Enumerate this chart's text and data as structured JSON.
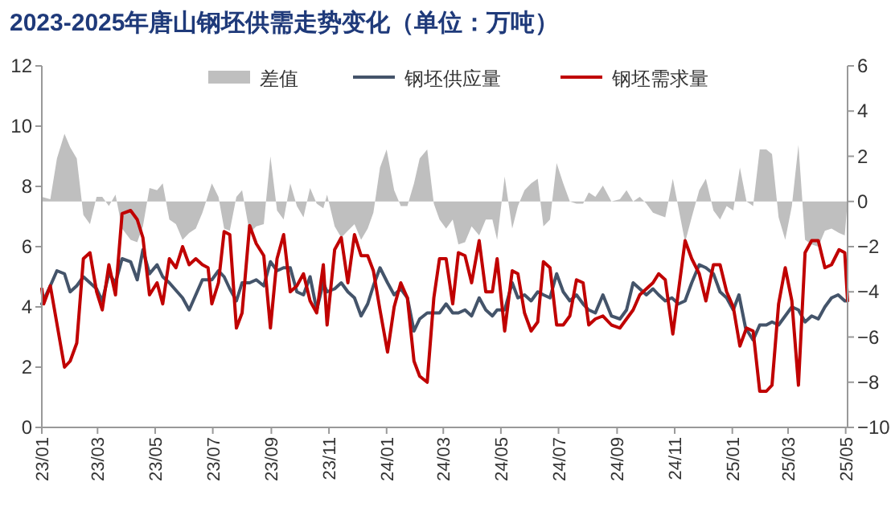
{
  "chart_data": {
    "type": "line",
    "title": "2023-2025年唐山钢坯供需走势变化（单位：万吨）",
    "legend": "top",
    "xlim": [
      "2023-01-01",
      "2025-05-03"
    ],
    "xticks": [
      {
        "value": "2023-01-01",
        "label": "23/01"
      },
      {
        "value": "2023-03-01",
        "label": "23/03"
      },
      {
        "value": "2023-05-01",
        "label": "23/05"
      },
      {
        "value": "2023-07-01",
        "label": "23/07"
      },
      {
        "value": "2023-09-01",
        "label": "23/09"
      },
      {
        "value": "2023-11-01",
        "label": "23/11"
      },
      {
        "value": "2024-01-01",
        "label": "24/01"
      },
      {
        "value": "2024-03-01",
        "label": "24/03"
      },
      {
        "value": "2024-05-01",
        "label": "24/05"
      },
      {
        "value": "2024-07-01",
        "label": "24/07"
      },
      {
        "value": "2024-09-01",
        "label": "24/09"
      },
      {
        "value": "2024-11-01",
        "label": "24/11"
      },
      {
        "value": "2025-01-01",
        "label": "25/01"
      },
      {
        "value": "2025-03-01",
        "label": "25/03"
      },
      {
        "value": "2025-05-01",
        "label": "25/05"
      }
    ],
    "ylim": [
      0,
      12
    ],
    "yticks": [
      0,
      2,
      4,
      6,
      8,
      10,
      12
    ],
    "y2lim": [
      -10,
      6
    ],
    "y2ticks": [
      -10,
      -8,
      -6,
      -4,
      -2,
      0,
      2,
      4,
      6
    ],
    "series": [
      {
        "name": "差值",
        "type": "area",
        "axis": "y2",
        "color": "#bfbfbf",
        "x": [
          "2023-01-01",
          "2023-01-10",
          "2023-01-17",
          "2023-01-25",
          "2023-01-31",
          "2023-02-07",
          "2023-02-14",
          "2023-02-21",
          "2023-02-28",
          "2023-03-06",
          "2023-03-13",
          "2023-03-20",
          "2023-03-27",
          "2023-04-05",
          "2023-04-12",
          "2023-04-18",
          "2023-04-25",
          "2023-05-03",
          "2023-05-09",
          "2023-05-16",
          "2023-05-23",
          "2023-05-30",
          "2023-06-06",
          "2023-06-13",
          "2023-06-20",
          "2023-06-30",
          "2023-07-07",
          "2023-07-13",
          "2023-07-19",
          "2023-07-26",
          "2023-08-01",
          "2023-08-09",
          "2023-08-16",
          "2023-08-24",
          "2023-08-31",
          "2023-09-07",
          "2023-09-14",
          "2023-09-21",
          "2023-09-28",
          "2023-10-05",
          "2023-10-12",
          "2023-10-19",
          "2023-10-26",
          "2023-10-30",
          "2023-11-07",
          "2023-11-14",
          "2023-11-21",
          "2023-11-28",
          "2023-12-05",
          "2023-12-12",
          "2023-12-18",
          "2023-12-25",
          "2024-01-01",
          "2024-01-09",
          "2024-01-16",
          "2024-01-23",
          "2024-01-30",
          "2024-02-05",
          "2024-02-13",
          "2024-02-20",
          "2024-02-26",
          "2024-03-04",
          "2024-03-11",
          "2024-03-17",
          "2024-03-24",
          "2024-03-31",
          "2024-04-08",
          "2024-04-15",
          "2024-04-22",
          "2024-04-27",
          "2024-05-05",
          "2024-05-13",
          "2024-05-19",
          "2024-05-26",
          "2024-06-02",
          "2024-06-09",
          "2024-06-15",
          "2024-06-22",
          "2024-06-29",
          "2024-07-06",
          "2024-07-13",
          "2024-07-20",
          "2024-07-27",
          "2024-08-02",
          "2024-08-09",
          "2024-08-17",
          "2024-08-26",
          "2024-09-04",
          "2024-09-11",
          "2024-09-18",
          "2024-09-25",
          "2024-10-02",
          "2024-10-09",
          "2024-10-15",
          "2024-10-22",
          "2024-10-30",
          "2024-11-12",
          "2024-11-19",
          "2024-11-27",
          "2024-12-04",
          "2024-12-12",
          "2024-12-19",
          "2024-12-26",
          "2025-01-02",
          "2025-01-09",
          "2025-01-16",
          "2025-01-23",
          "2025-01-30",
          "2025-02-06",
          "2025-02-12",
          "2025-02-19",
          "2025-02-26",
          "2025-03-05",
          "2025-03-12",
          "2025-03-19",
          "2025-03-26",
          "2025-04-02",
          "2025-04-09",
          "2025-04-16",
          "2025-04-24",
          "2025-04-30",
          "2025-05-03"
        ],
        "values": [
          0.2,
          0.1,
          1.9,
          3.0,
          2.4,
          1.9,
          -0.6,
          -1.0,
          0.2,
          0.2,
          -0.2,
          0.3,
          -1.2,
          -1.7,
          -1.8,
          -1.1,
          0.6,
          0.5,
          0.8,
          -0.8,
          -1.0,
          -1.7,
          -1.4,
          -1.2,
          -0.5,
          0.8,
          0.2,
          -1.2,
          -1.3,
          0.2,
          0.5,
          -1.4,
          -1.1,
          -1.0,
          2.0,
          -0.4,
          -0.8,
          0.8,
          -0.2,
          -0.7,
          0.6,
          -0.1,
          -0.3,
          0.3,
          -1.1,
          -1.6,
          -1.3,
          -1.0,
          -1.7,
          -1.2,
          -0.5,
          1.5,
          2.3,
          0.5,
          -0.2,
          -0.2,
          0.8,
          1.9,
          2.3,
          -0.1,
          -0.8,
          -1.2,
          -0.8,
          -1.9,
          -1.8,
          -1.1,
          -1.5,
          -0.8,
          -0.8,
          -1.7,
          1.1,
          -1.2,
          -0.2,
          0.5,
          0.8,
          1.0,
          -1.1,
          -0.8,
          1.7,
          0.8,
          0.0,
          -0.1,
          -0.1,
          0.4,
          0.2,
          0.7,
          0.0,
          0.1,
          0.5,
          0.0,
          0.2,
          -0.1,
          -0.5,
          -0.6,
          -0.7,
          1.0,
          -1.8,
          -0.7,
          0.5,
          1.0,
          -0.4,
          -0.8,
          -0.2,
          -0.4,
          1.5,
          0.0,
          -0.2,
          2.3,
          2.3,
          2.1,
          -0.7,
          -1.7,
          -0.2,
          2.5,
          -1.7,
          -1.9,
          -2.0,
          -1.3,
          -1.2,
          -1.4,
          -1.5,
          0.0
        ]
      },
      {
        "name": "钢坯供应量",
        "color": "#44546a",
        "x": [
          "2023-01-01",
          "2023-01-10",
          "2023-01-17",
          "2023-01-25",
          "2023-01-31",
          "2023-02-07",
          "2023-02-14",
          "2023-02-21",
          "2023-02-28",
          "2023-03-06",
          "2023-03-13",
          "2023-03-20",
          "2023-03-27",
          "2023-04-05",
          "2023-04-12",
          "2023-04-18",
          "2023-04-25",
          "2023-05-03",
          "2023-05-09",
          "2023-05-16",
          "2023-05-30",
          "2023-06-06",
          "2023-06-20",
          "2023-06-30",
          "2023-07-07",
          "2023-07-13",
          "2023-07-19",
          "2023-07-26",
          "2023-08-01",
          "2023-08-09",
          "2023-08-16",
          "2023-08-24",
          "2023-08-31",
          "2023-09-07",
          "2023-09-14",
          "2023-09-21",
          "2023-09-28",
          "2023-10-05",
          "2023-10-12",
          "2023-10-19",
          "2023-10-26",
          "2023-10-30",
          "2023-11-07",
          "2023-11-14",
          "2023-11-21",
          "2023-11-28",
          "2023-12-05",
          "2023-12-12",
          "2023-12-18",
          "2023-12-25",
          "2024-01-02",
          "2024-01-09",
          "2024-01-16",
          "2024-01-23",
          "2024-01-30",
          "2024-02-05",
          "2024-02-13",
          "2024-02-20",
          "2024-02-26",
          "2024-03-04",
          "2024-03-11",
          "2024-03-17",
          "2024-03-24",
          "2024-03-31",
          "2024-04-08",
          "2024-04-15",
          "2024-04-22",
          "2024-04-27",
          "2024-05-05",
          "2024-05-13",
          "2024-05-19",
          "2024-05-26",
          "2024-06-02",
          "2024-06-09",
          "2024-06-15",
          "2024-06-22",
          "2024-06-29",
          "2024-07-06",
          "2024-07-13",
          "2024-07-20",
          "2024-07-27",
          "2024-08-02",
          "2024-08-09",
          "2024-08-17",
          "2024-08-26",
          "2024-09-04",
          "2024-09-11",
          "2024-09-18",
          "2024-09-25",
          "2024-10-02",
          "2024-10-09",
          "2024-10-15",
          "2024-10-22",
          "2024-10-29",
          "2024-11-05",
          "2024-11-12",
          "2024-11-19",
          "2024-11-27",
          "2024-12-04",
          "2024-12-12",
          "2024-12-19",
          "2024-12-26",
          "2025-01-02",
          "2025-01-08",
          "2025-01-15",
          "2025-01-23",
          "2025-01-30",
          "2025-02-06",
          "2025-02-12",
          "2025-02-19",
          "2025-02-26",
          "2025-03-05",
          "2025-03-12",
          "2025-03-19",
          "2025-03-26",
          "2025-04-02",
          "2025-04-09",
          "2025-04-16",
          "2025-04-23",
          "2025-04-30",
          "2025-05-03"
        ],
        "values": [
          4.1,
          4.7,
          5.2,
          5.1,
          4.5,
          4.7,
          5.0,
          4.8,
          4.6,
          4.2,
          5.1,
          4.8,
          5.6,
          5.5,
          4.9,
          5.9,
          5.1,
          5.4,
          5.0,
          4.8,
          4.3,
          3.9,
          4.9,
          4.9,
          5.2,
          5.0,
          4.6,
          4.2,
          4.8,
          4.8,
          4.9,
          4.7,
          5.5,
          5.2,
          5.3,
          5.3,
          4.5,
          4.4,
          5.0,
          3.9,
          4.8,
          4.5,
          4.6,
          4.8,
          4.5,
          4.3,
          3.7,
          4.1,
          4.7,
          5.3,
          4.8,
          4.4,
          4.6,
          4.3,
          3.2,
          3.6,
          3.8,
          3.8,
          3.8,
          4.1,
          3.8,
          3.8,
          3.9,
          3.7,
          4.3,
          3.9,
          3.7,
          3.9,
          3.9,
          4.8,
          4.3,
          4.4,
          4.2,
          4.5,
          4.4,
          4.3,
          5.1,
          4.5,
          4.2,
          4.4,
          4.1,
          3.9,
          3.8,
          4.4,
          3.7,
          3.6,
          3.9,
          4.8,
          4.6,
          4.4,
          4.6,
          4.4,
          4.2,
          4.3,
          4.1,
          4.2,
          4.8,
          5.4,
          5.3,
          5.1,
          4.5,
          4.3,
          3.9,
          4.4,
          3.3,
          2.9,
          3.4,
          3.4,
          3.5,
          3.4,
          3.7,
          4.0,
          3.9,
          3.5,
          3.7,
          3.6,
          4.0,
          4.3,
          4.4,
          4.2,
          4.2
        ]
      },
      {
        "name": "钢坯需求量",
        "color": "#c00000",
        "x": [
          "2023-01-01",
          "2023-01-03",
          "2023-01-10",
          "2023-01-25",
          "2023-01-31",
          "2023-02-07",
          "2023-02-14",
          "2023-02-21",
          "2023-02-28",
          "2023-03-06",
          "2023-03-13",
          "2023-03-20",
          "2023-03-27",
          "2023-04-05",
          "2023-04-12",
          "2023-04-18",
          "2023-04-25",
          "2023-05-03",
          "2023-05-09",
          "2023-05-16",
          "2023-05-23",
          "2023-05-30",
          "2023-06-06",
          "2023-06-13",
          "2023-06-20",
          "2023-06-26",
          "2023-06-30",
          "2023-07-07",
          "2023-07-13",
          "2023-07-19",
          "2023-07-26",
          "2023-08-01",
          "2023-08-09",
          "2023-08-16",
          "2023-08-24",
          "2023-08-31",
          "2023-09-07",
          "2023-09-14",
          "2023-09-21",
          "2023-09-28",
          "2023-10-05",
          "2023-10-12",
          "2023-10-19",
          "2023-10-26",
          "2023-10-30",
          "2023-11-07",
          "2023-11-14",
          "2023-11-21",
          "2023-11-28",
          "2023-12-05",
          "2023-12-12",
          "2023-12-18",
          "2023-12-25",
          "2024-01-02",
          "2024-01-09",
          "2024-01-16",
          "2024-01-23",
          "2024-01-30",
          "2024-02-05",
          "2024-02-13",
          "2024-02-20",
          "2024-02-26",
          "2024-03-04",
          "2024-03-11",
          "2024-03-17",
          "2024-03-24",
          "2024-03-31",
          "2024-04-08",
          "2024-04-15",
          "2024-04-22",
          "2024-04-27",
          "2024-05-05",
          "2024-05-13",
          "2024-05-19",
          "2024-05-26",
          "2024-06-02",
          "2024-06-09",
          "2024-06-15",
          "2024-06-22",
          "2024-06-29",
          "2024-07-06",
          "2024-07-13",
          "2024-07-20",
          "2024-07-27",
          "2024-08-02",
          "2024-08-09",
          "2024-08-17",
          "2024-08-26",
          "2024-09-04",
          "2024-09-18",
          "2024-09-25",
          "2024-10-09",
          "2024-10-15",
          "2024-10-22",
          "2024-10-30",
          "2024-11-12",
          "2024-11-19",
          "2024-11-27",
          "2024-12-04",
          "2024-12-12",
          "2024-12-19",
          "2024-12-26",
          "2025-01-02",
          "2025-01-09",
          "2025-01-16",
          "2025-01-23",
          "2025-01-30",
          "2025-02-06",
          "2025-02-12",
          "2025-02-19",
          "2025-02-26",
          "2025-03-05",
          "2025-03-12",
          "2025-03-19",
          "2025-03-26",
          "2025-04-02",
          "2025-04-09",
          "2025-04-16",
          "2025-04-24",
          "2025-04-30",
          "2025-05-03"
        ],
        "values": [
          4.6,
          4.1,
          4.7,
          2.0,
          2.2,
          2.8,
          5.6,
          5.8,
          4.5,
          3.9,
          5.4,
          4.4,
          7.1,
          7.2,
          6.9,
          6.3,
          4.4,
          4.8,
          4.1,
          5.6,
          5.3,
          6.0,
          5.4,
          5.6,
          5.4,
          5.3,
          4.1,
          4.8,
          6.5,
          6.4,
          3.3,
          3.8,
          6.7,
          6.1,
          5.7,
          3.3,
          5.6,
          6.4,
          4.5,
          4.7,
          5.1,
          4.2,
          3.8,
          5.4,
          3.4,
          5.9,
          6.3,
          4.8,
          6.4,
          5.7,
          5.7,
          5.2,
          3.9,
          2.5,
          4.0,
          4.8,
          4.3,
          2.2,
          1.7,
          1.5,
          4.3,
          5.6,
          5.6,
          4.1,
          5.8,
          5.7,
          4.8,
          6.2,
          4.5,
          4.5,
          5.6,
          3.2,
          5.2,
          5.1,
          3.8,
          3.2,
          3.5,
          5.5,
          5.3,
          3.4,
          3.4,
          3.7,
          4.9,
          4.8,
          3.4,
          3.6,
          3.7,
          3.4,
          3.3,
          3.9,
          4.4,
          4.8,
          5.1,
          4.9,
          3.1,
          6.2,
          5.6,
          5.1,
          4.2,
          5.4,
          5.4,
          4.5,
          4.0,
          2.7,
          3.3,
          3.2,
          1.2,
          1.2,
          1.4,
          4.1,
          5.3,
          4.2,
          1.4,
          5.8,
          6.2,
          6.2,
          5.3,
          5.4,
          5.9,
          5.8,
          4.2
        ]
      }
    ]
  }
}
